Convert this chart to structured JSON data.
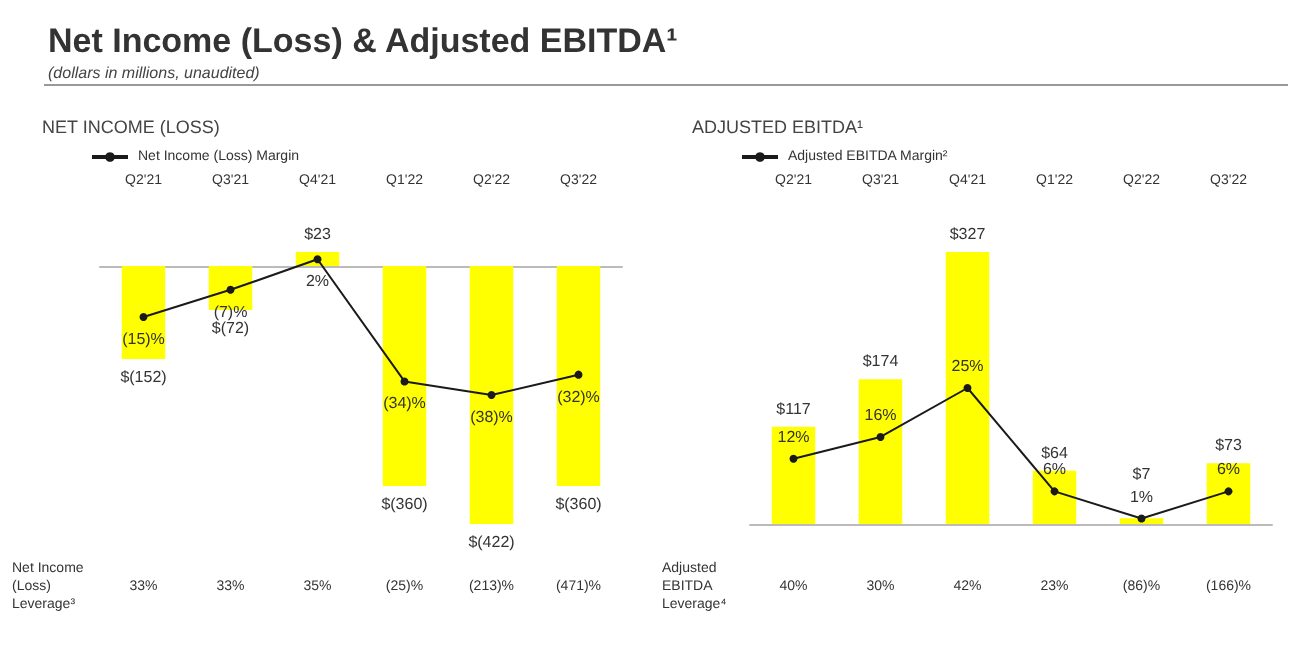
{
  "chart_data": [
    {
      "type": "other",
      "title": "Net Income (Loss) & Adjusted EBITDA¹",
      "subtitle": "(dollars in millions, unaudited)"
    },
    {
      "type": "bar",
      "title": "NET INCOME (LOSS)",
      "categories": [
        "Q2'21",
        "Q3'21",
        "Q4'21",
        "Q1'22",
        "Q2'22",
        "Q3'22"
      ],
      "tick_labels": "x",
      "legend": "top left",
      "marker": "circle",
      "series": [
        {
          "type": "bar",
          "color": "#ffff00",
          "values": [
            -152,
            -72,
            23,
            -360,
            -422,
            -360
          ],
          "value_labels": [
            "$(152)",
            "$(72)",
            "$23",
            "$(360)",
            "$(422)",
            "$(360)"
          ]
        },
        {
          "type": "line",
          "axis": "y2",
          "name": "Net Income (Loss) Margin",
          "color": "#1a1a1a",
          "values": [
            -15,
            -7,
            2,
            -34,
            -38,
            -32
          ],
          "value_labels": [
            "(15)%",
            "(7)%",
            "2%",
            "(34)%",
            "(38)%",
            "(32)%"
          ]
        }
      ],
      "annotations": [
        "Net Income (Loss) Leverage³",
        "33%",
        "33%",
        "35%",
        "(25)%",
        "(213)%",
        "(471)%"
      ]
    },
    {
      "type": "bar",
      "title": "ADJUSTED EBITDA¹",
      "categories": [
        "Q2'21",
        "Q3'21",
        "Q4'21",
        "Q1'22",
        "Q2'22",
        "Q3'22"
      ],
      "tick_labels": "x",
      "legend": "top left",
      "marker": "circle",
      "series": [
        {
          "type": "bar",
          "color": "#ffff00",
          "values": [
            117,
            174,
            327,
            64,
            7,
            73
          ],
          "value_labels": [
            "$117",
            "$174",
            "$327",
            "$64",
            "$7",
            "$73"
          ]
        },
        {
          "type": "line",
          "axis": "y2",
          "name": "Adjusted EBITDA Margin²",
          "color": "#1a1a1a",
          "values": [
            12,
            16,
            25,
            6,
            1,
            6
          ],
          "value_labels": [
            "12%",
            "16%",
            "25%",
            "6%",
            "1%",
            "6%"
          ]
        }
      ],
      "annotations": [
        "Adjusted EBITDA Leverage⁴",
        "40%",
        "30%",
        "42%",
        "23%",
        "(86)%",
        "(166)%"
      ]
    }
  ]
}
